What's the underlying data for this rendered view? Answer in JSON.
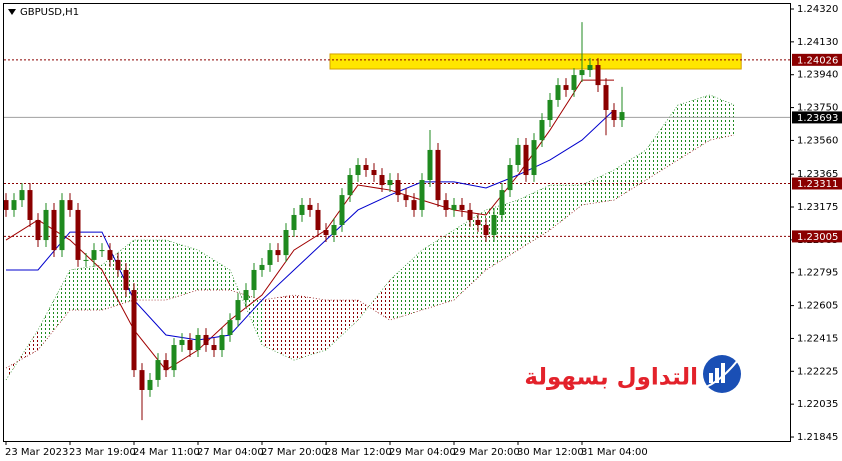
{
  "chart_data": {
    "type": "candlestick",
    "title": "GBPUSD,H1",
    "watermark": "التداول بسهولة",
    "up_color": "#1f8a1f",
    "down_color": "#8b0000",
    "xlim": [
      -0.75,
      98
    ],
    "ylim": [
      1.21822,
      1.24372
    ],
    "xticks": [
      {
        "value": 0,
        "label": "23 Mar 2023"
      },
      {
        "value": 8,
        "label": "23 Mar 19:00"
      },
      {
        "value": 16,
        "label": "24 Mar 11:00"
      },
      {
        "value": 24,
        "label": "27 Mar 04:00"
      },
      {
        "value": 32,
        "label": "27 Mar 20:00"
      },
      {
        "value": 40,
        "label": "28 Mar 12:00"
      },
      {
        "value": 48,
        "label": "29 Mar 04:00"
      },
      {
        "value": 56,
        "label": "29 Mar 20:00"
      },
      {
        "value": 64,
        "label": "30 Mar 12:00"
      },
      {
        "value": 72,
        "label": "31 Mar 04:00"
      }
    ],
    "yticks": [
      {
        "value": 1.2432,
        "label": "1.24320"
      },
      {
        "value": 1.2413,
        "label": "1.24130"
      },
      {
        "value": 1.2394,
        "label": "1.23940"
      },
      {
        "value": 1.2375,
        "label": "1.23750"
      },
      {
        "value": 1.2356,
        "label": "1.23560"
      },
      1.23365,
      1.23175,
      1.22985,
      1.22795,
      1.22605,
      1.22415,
      1.22225,
      1.22035,
      1.21845
    ],
    "open": [
      1.23215,
      1.23158,
      1.23215,
      1.23273,
      1.231,
      1.22984,
      1.23158,
      1.22926,
      1.23215,
      1.23158,
      1.22869,
      1.22869,
      1.22926,
      1.22926,
      1.22869,
      1.22811,
      1.22695,
      1.22232,
      1.22117,
      1.22175,
      1.2229,
      1.22232,
      1.22377,
      1.22406,
      1.22348,
      1.22435,
      1.22377,
      1.22348,
      1.22435,
      1.22521,
      1.22637,
      1.22695,
      1.22811,
      1.2284,
      1.22926,
      1.22897,
      1.23042,
      1.23129,
      1.23187,
      1.23158,
      1.23042,
      1.23013,
      1.23071,
      1.23244,
      1.2336,
      1.23418,
      1.23389,
      1.2336,
      1.23302,
      1.23331,
      1.23244,
      1.23215,
      1.23158,
      1.23331,
      1.23505,
      1.23215,
      1.23158,
      1.23187,
      1.23158,
      1.231,
      1.23071,
      1.23013,
      1.23129,
      1.23273,
      1.23418,
      1.23534,
      1.2336,
      1.23562,
      1.23678,
      1.23794,
      1.2388,
      1.23852,
      1.23938,
      1.23967,
      1.23996,
      1.2388,
      1.23736,
      1.23678
    ],
    "high": [
      1.23255,
      1.23255,
      1.23313,
      1.23313,
      1.2314,
      1.23198,
      1.23198,
      1.23255,
      1.23255,
      1.23198,
      1.22909,
      1.22966,
      1.22966,
      1.22966,
      1.22909,
      1.22851,
      1.22735,
      1.22272,
      1.22215,
      1.2233,
      1.2233,
      1.22417,
      1.22446,
      1.22446,
      1.22475,
      1.22475,
      1.22417,
      1.22475,
      1.22561,
      1.22677,
      1.22735,
      1.22851,
      1.2288,
      1.22966,
      1.22966,
      1.23082,
      1.23169,
      1.23227,
      1.23227,
      1.23198,
      1.23082,
      1.23111,
      1.23284,
      1.234,
      1.23458,
      1.23458,
      1.23429,
      1.234,
      1.23371,
      1.23371,
      1.23284,
      1.23255,
      1.23371,
      1.2362,
      1.23545,
      1.23255,
      1.23227,
      1.23227,
      1.23198,
      1.2314,
      1.23111,
      1.23169,
      1.23313,
      1.23458,
      1.23574,
      1.23574,
      1.23602,
      1.23718,
      1.23834,
      1.2392,
      1.2392,
      1.23978,
      1.24244,
      1.24036,
      1.24036,
      1.2392,
      1.23776,
      1.2387
    ],
    "low": [
      1.23118,
      1.23118,
      1.23175,
      1.2306,
      1.22944,
      1.22944,
      1.22886,
      1.22886,
      1.23118,
      1.22829,
      1.22829,
      1.22829,
      1.22886,
      1.22829,
      1.22771,
      1.22655,
      1.22192,
      1.21943,
      1.22077,
      1.22135,
      1.22192,
      1.22192,
      1.22337,
      1.22308,
      1.22308,
      1.22337,
      1.22308,
      1.22308,
      1.22395,
      1.22481,
      1.22597,
      1.22655,
      1.22771,
      1.228,
      1.22857,
      1.22857,
      1.23002,
      1.23089,
      1.23118,
      1.23002,
      1.22973,
      1.22973,
      1.23031,
      1.23204,
      1.2332,
      1.23349,
      1.2332,
      1.23262,
      1.23262,
      1.23204,
      1.23175,
      1.23118,
      1.23118,
      1.23291,
      1.23175,
      1.23118,
      1.23118,
      1.23118,
      1.2306,
      1.23031,
      1.22973,
      1.22973,
      1.23089,
      1.23233,
      1.23378,
      1.2332,
      1.2332,
      1.23522,
      1.23638,
      1.23754,
      1.23812,
      1.23812,
      1.23898,
      1.23927,
      1.2384,
      1.2359,
      1.23638,
      1.23638
    ],
    "close": [
      1.23158,
      1.23215,
      1.23273,
      1.231,
      1.22984,
      1.23158,
      1.22926,
      1.23215,
      1.23158,
      1.22869,
      1.22869,
      1.22926,
      1.22926,
      1.22869,
      1.22811,
      1.22695,
      1.22232,
      1.22117,
      1.22175,
      1.2229,
      1.22232,
      1.22377,
      1.22406,
      1.22348,
      1.22435,
      1.22377,
      1.22348,
      1.22435,
      1.22521,
      1.22637,
      1.22695,
      1.22811,
      1.2284,
      1.22926,
      1.22897,
      1.23042,
      1.23129,
      1.23187,
      1.23158,
      1.23042,
      1.23013,
      1.23071,
      1.23244,
      1.2336,
      1.23418,
      1.23389,
      1.2336,
      1.23302,
      1.23331,
      1.23244,
      1.23215,
      1.23158,
      1.23331,
      1.23505,
      1.23215,
      1.23158,
      1.23187,
      1.23158,
      1.231,
      1.23071,
      1.23013,
      1.23129,
      1.23273,
      1.23418,
      1.23534,
      1.2336,
      1.23562,
      1.23678,
      1.23794,
      1.2388,
      1.23852,
      1.23938,
      1.23967,
      1.23996,
      1.2388,
      1.23736,
      1.23678,
      1.23724
    ],
    "indicators": {
      "x": [
        0,
        4,
        8,
        12,
        16,
        20,
        24,
        28,
        32,
        36,
        40,
        44,
        48,
        52,
        56,
        60,
        64,
        68,
        72,
        76
      ],
      "series": [
        {
          "color": "#a00000",
          "values": [
            1.22984,
            1.231,
            1.22984,
            1.22811,
            1.22464,
            1.22232,
            1.22348,
            1.22521,
            1.22666,
            1.22926,
            1.23042,
            1.23302,
            1.23273,
            1.23215,
            1.23158,
            1.23129,
            1.2336,
            1.2362,
            1.23909,
            1.23909
          ]
        },
        {
          "color": "#0000cd",
          "values": [
            1.22811,
            1.22811,
            1.2303,
            1.2303,
            1.22637,
            1.22435,
            1.22406,
            1.22435,
            1.22637,
            1.22811,
            1.22984,
            1.23158,
            1.23244,
            1.2332,
            1.2332,
            1.23285,
            1.2336,
            1.23447,
            1.23562,
            1.23736
          ]
        }
      ]
    },
    "cloud": {
      "x": [
        0,
        4,
        8,
        12,
        16,
        20,
        24,
        28,
        32,
        36,
        40,
        44,
        48,
        52,
        56,
        60,
        64,
        68,
        72,
        76,
        80,
        84,
        88,
        91
      ],
      "span_a": [
        1.22175,
        1.22464,
        1.22811,
        1.2284,
        1.22984,
        1.22984,
        1.22926,
        1.22811,
        1.22377,
        1.2229,
        1.22348,
        1.22521,
        1.22753,
        1.22926,
        1.23042,
        1.23158,
        1.23215,
        1.23302,
        1.23302,
        1.23389,
        1.23505,
        1.23765,
        1.23823,
        1.23765
      ],
      "span_b": [
        1.22244,
        1.22348,
        1.22579,
        1.22579,
        1.22637,
        1.22637,
        1.22695,
        1.22695,
        1.22637,
        1.22666,
        1.22637,
        1.22637,
        1.22521,
        1.22579,
        1.22637,
        1.22811,
        1.22926,
        1.23042,
        1.23187,
        1.23215,
        1.23331,
        1.23447,
        1.23562,
        1.23591
      ],
      "up_color": "#1f8a1f",
      "down_color": "#8b0000"
    },
    "zone": {
      "x": [
        40.5,
        91.9
      ],
      "y": [
        1.23973,
        1.2406
      ],
      "color": "#ffe600"
    },
    "levels": [
      1.24026,
      1.23311,
      1.23005
    ],
    "level_color": "#8b0000",
    "last_price": 1.23693,
    "last_color": "#000000"
  }
}
